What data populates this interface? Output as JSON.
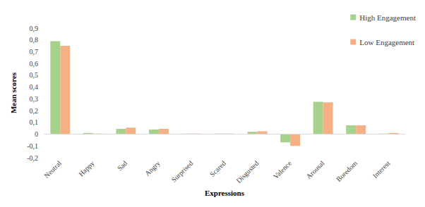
{
  "chart_data": {
    "type": "bar",
    "categories": [
      "Neutral",
      "Happy",
      "Sad",
      "Angry",
      "Surprised",
      "Scared",
      "Disgusted",
      "Valence",
      "Arousal",
      "Boredom",
      "Interest"
    ],
    "series": [
      {
        "name": "High Engagement",
        "color": "#a9d18e",
        "values": [
          0.79,
          0.01,
          0.045,
          0.04,
          0.005,
          0.005,
          0.02,
          -0.07,
          0.275,
          0.075,
          0.005
        ]
      },
      {
        "name": "Low Engagement",
        "color": "#f4b183",
        "values": [
          0.75,
          0.005,
          0.055,
          0.045,
          0.005,
          0.005,
          0.025,
          -0.1,
          0.27,
          0.075,
          0.01
        ]
      }
    ],
    "x_label": "Expressions",
    "y_label": "Mean scores",
    "ylim": [
      -0.2,
      0.9
    ],
    "yticks": [
      {
        "value": -0.2,
        "label": "-0,2"
      },
      {
        "value": -0.1,
        "label": "-0,1"
      },
      0,
      {
        "value": 0.1,
        "label": "0,1"
      },
      {
        "value": 0.2,
        "label": "0,2"
      },
      {
        "value": 0.3,
        "label": "0,3"
      },
      {
        "value": 0.4,
        "label": "0,4"
      },
      {
        "value": 0.5,
        "label": "0,5"
      },
      {
        "value": 0.6,
        "label": "0,6"
      },
      {
        "value": 0.7,
        "label": "0,7"
      },
      {
        "value": 0.8,
        "label": "0,8"
      },
      {
        "value": 0.9,
        "label": "0,9"
      }
    ],
    "grid": false,
    "legend": "top-right"
  }
}
